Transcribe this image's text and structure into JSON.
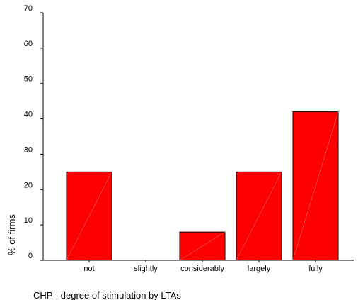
{
  "chart_data": {
    "type": "bar",
    "categories": [
      "not",
      "slightly",
      "considerably",
      "largely",
      "fully"
    ],
    "values": [
      25,
      0,
      8,
      25,
      42
    ],
    "title": "",
    "xlabel": "CHP - degree of stimulation by LTAs",
    "ylabel": "% of firms",
    "ylim": [
      0,
      70
    ],
    "yticks": [
      "0",
      "10",
      "20",
      "30",
      "40",
      "50",
      "60",
      "70"
    ],
    "grid": false,
    "bar_color": "#ff0000",
    "bar_stroke": "#000000"
  }
}
